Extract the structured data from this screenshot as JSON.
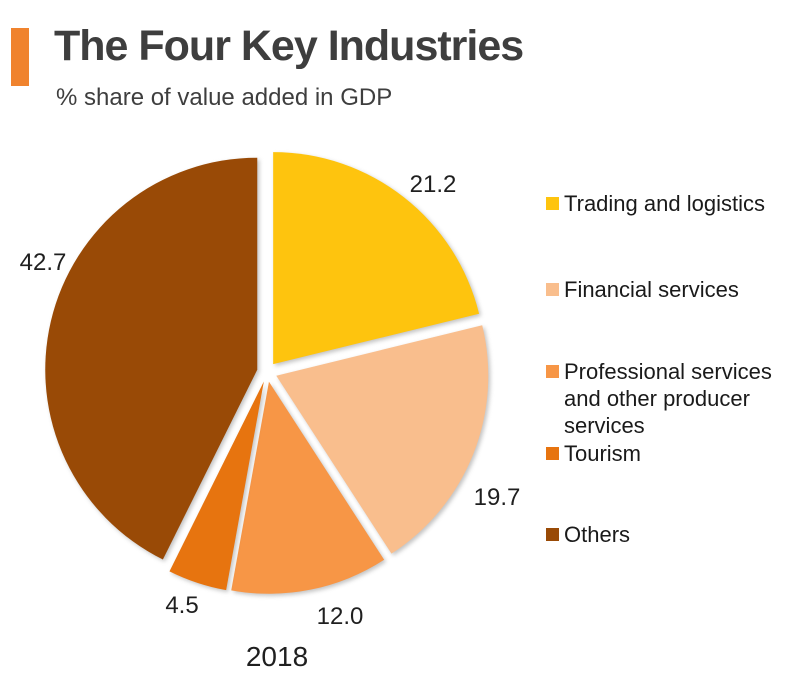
{
  "header": {
    "title": "The Four Key Industries",
    "subtitle": "% share of value added in GDP",
    "accent_color": "#F0832E"
  },
  "chart_data": {
    "type": "pie",
    "title": "The Four Key Industries",
    "subtitle": "% share of value added in GDP",
    "year_label": "2018",
    "legend_position": "right",
    "direction": "clockwise",
    "start_angle_deg": 0,
    "series": [
      {
        "label": "Trading and logistics",
        "value": 21.2,
        "value_label": "21.2",
        "color": "#FEC40E"
      },
      {
        "label": "Financial services",
        "value": 19.7,
        "value_label": "19.7",
        "color": "#F9BE8D"
      },
      {
        "label": "Professional services and other producer services",
        "value": 12.0,
        "value_label": "12.0",
        "color": "#F79646"
      },
      {
        "label": "Tourism",
        "value": 4.5,
        "value_label": "4.5",
        "color": "#E7740F"
      },
      {
        "label": "Others",
        "value": 42.7,
        "value_label": "42.7",
        "color": "#994A06"
      }
    ]
  }
}
